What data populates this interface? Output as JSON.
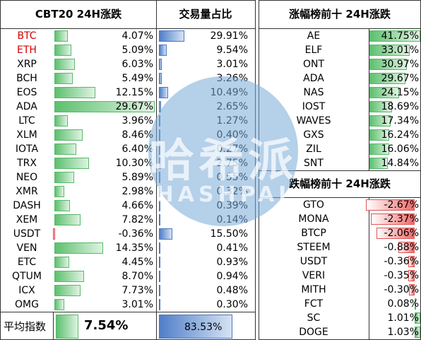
{
  "left_table": {
    "header_name": "CBT20 24H涨跌",
    "header_volume": "交易量占比",
    "rows": [
      {
        "name": "BTC",
        "change": "4.07%",
        "change_value": 4.07,
        "volume": "29.91%",
        "volume_value": 29.91,
        "name_color": "#d40000"
      },
      {
        "name": "ETH",
        "change": "5.09%",
        "change_value": 5.09,
        "volume": "9.54%",
        "volume_value": 9.54,
        "name_color": "#d40000"
      },
      {
        "name": "XRP",
        "change": "6.03%",
        "change_value": 6.03,
        "volume": "3.01%",
        "volume_value": 3.01,
        "name_color": "#000000"
      },
      {
        "name": "BCH",
        "change": "5.49%",
        "change_value": 5.49,
        "volume": "3.26%",
        "volume_value": 3.26,
        "name_color": "#000000"
      },
      {
        "name": "EOS",
        "change": "12.15%",
        "change_value": 12.15,
        "volume": "10.49%",
        "volume_value": 10.49,
        "name_color": "#000000"
      },
      {
        "name": "ADA",
        "change": "29.67%",
        "change_value": 29.67,
        "volume": "2.65%",
        "volume_value": 2.65,
        "name_color": "#000000"
      },
      {
        "name": "LTC",
        "change": "3.96%",
        "change_value": 3.96,
        "volume": "1.27%",
        "volume_value": 1.27,
        "name_color": "#000000"
      },
      {
        "name": "XLM",
        "change": "8.46%",
        "change_value": 8.46,
        "volume": "0.40%",
        "volume_value": 0.4,
        "name_color": "#000000"
      },
      {
        "name": "IOTA",
        "change": "6.40%",
        "change_value": 6.4,
        "volume": "0.27%",
        "volume_value": 0.27,
        "name_color": "#000000"
      },
      {
        "name": "TRX",
        "change": "10.30%",
        "change_value": 10.3,
        "volume": "2.75%",
        "volume_value": 2.75,
        "name_color": "#000000"
      },
      {
        "name": "NEO",
        "change": "5.89%",
        "change_value": 5.89,
        "volume": "0.55%",
        "volume_value": 0.55,
        "name_color": "#000000"
      },
      {
        "name": "XMR",
        "change": "2.98%",
        "change_value": 2.98,
        "volume": "0.32%",
        "volume_value": 0.32,
        "name_color": "#000000"
      },
      {
        "name": "DASH",
        "change": "4.66%",
        "change_value": 4.66,
        "volume": "0.39%",
        "volume_value": 0.39,
        "name_color": "#000000"
      },
      {
        "name": "XEM",
        "change": "7.82%",
        "change_value": 7.82,
        "volume": "0.14%",
        "volume_value": 0.14,
        "name_color": "#000000"
      },
      {
        "name": "USDT",
        "change": "-0.36%",
        "change_value": -0.36,
        "volume": "15.50%",
        "volume_value": 15.5,
        "name_color": "#000000"
      },
      {
        "name": "VEN",
        "change": "14.35%",
        "change_value": 14.35,
        "volume": "0.41%",
        "volume_value": 0.41,
        "name_color": "#000000"
      },
      {
        "name": "ETC",
        "change": "4.45%",
        "change_value": 4.45,
        "volume": "0.93%",
        "volume_value": 0.93,
        "name_color": "#000000"
      },
      {
        "name": "QTUM",
        "change": "8.70%",
        "change_value": 8.7,
        "volume": "0.94%",
        "volume_value": 0.94,
        "name_color": "#000000"
      },
      {
        "name": "ICX",
        "change": "7.73%",
        "change_value": 7.73,
        "volume": "0.48%",
        "volume_value": 0.48,
        "name_color": "#000000"
      },
      {
        "name": "OMG",
        "change": "3.01%",
        "change_value": 3.01,
        "volume": "0.30%",
        "volume_value": 0.3,
        "name_color": "#000000"
      }
    ],
    "average_label": "平均指数",
    "average_change": "7.54%",
    "average_change_value": 7.54,
    "average_volume": "83.53%",
    "average_volume_value": 83.53
  },
  "gainers": {
    "title": "涨幅榜前十 24H涨跌",
    "rows": [
      {
        "name": "AE",
        "change": "41.75%",
        "value": 41.75
      },
      {
        "name": "ELF",
        "change": "33.01%",
        "value": 33.01
      },
      {
        "name": "ONT",
        "change": "30.97%",
        "value": 30.97
      },
      {
        "name": "ADA",
        "change": "29.67%",
        "value": 29.67
      },
      {
        "name": "NAS",
        "change": "24.15%",
        "value": 24.15
      },
      {
        "name": "IOST",
        "change": "18.69%",
        "value": 18.69
      },
      {
        "name": "WAVES",
        "change": "17.34%",
        "value": 17.34
      },
      {
        "name": "GXS",
        "change": "16.24%",
        "value": 16.24
      },
      {
        "name": "ZIL",
        "change": "16.06%",
        "value": 16.06
      },
      {
        "name": "SNT",
        "change": "14.84%",
        "value": 14.84
      }
    ]
  },
  "losers": {
    "title": "跌幅榜前十 24H涨跌",
    "rows": [
      {
        "name": "GTO",
        "change": "-2.67%",
        "value": -2.67
      },
      {
        "name": "MONA",
        "change": "-2.37%",
        "value": -2.37
      },
      {
        "name": "BTCP",
        "change": "-2.06%",
        "value": -2.06
      },
      {
        "name": "STEEM",
        "change": "-0.88%",
        "value": -0.88
      },
      {
        "name": "USDT",
        "change": "-0.36%",
        "value": -0.36
      },
      {
        "name": "VERI",
        "change": "-0.35%",
        "value": -0.35
      },
      {
        "name": "MITH",
        "change": "-0.30%",
        "value": -0.3
      },
      {
        "name": "FCT",
        "change": "0.08%",
        "value": 0.08
      },
      {
        "name": "SC",
        "change": "1.01%",
        "value": 1.01
      },
      {
        "name": "DOGE",
        "change": "1.03%",
        "value": 1.03
      }
    ]
  },
  "watermark": {
    "text": "哈希派",
    "sub": "HASHPAI"
  },
  "colors": {
    "green": "#5cc06d",
    "blue": "#4f7fc8",
    "red": "#f06a6a",
    "highlight_name": "#d40000"
  }
}
